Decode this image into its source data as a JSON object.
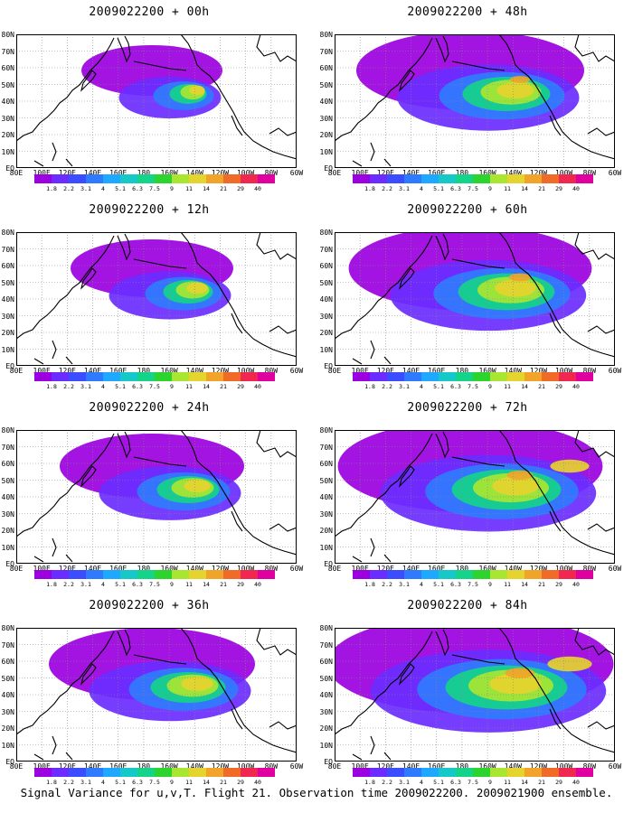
{
  "footer": "Signal Variance for u,v,T. Flight 21. Observation time 2009022200. 2009021900 ensemble.",
  "lat_labels": [
    "80N",
    "70N",
    "60N",
    "50N",
    "40N",
    "30N",
    "20N",
    "10N",
    "EQ"
  ],
  "lon_labels": [
    "80E",
    "100E",
    "120E",
    "140E",
    "160E",
    "180",
    "160W",
    "140W",
    "120W",
    "100W",
    "80W",
    "60W"
  ],
  "colorbar": {
    "labels": [
      "1.8",
      "2.2",
      "3.1",
      "4",
      "5.1",
      "6.3",
      "7.5",
      "9",
      "11",
      "14",
      "21",
      "29",
      "40"
    ],
    "colors": [
      "#9b00e0",
      "#6a2cff",
      "#3c4cff",
      "#2f7bff",
      "#1ea8ff",
      "#16c8c8",
      "#14d48a",
      "#2ed42e",
      "#a8e632",
      "#e6d42e",
      "#f0a42a",
      "#f06a28",
      "#f02850",
      "#e000a0"
    ]
  },
  "panels": [
    {
      "title": "2009022200 + 00h",
      "level": 0.15
    },
    {
      "title": "2009022200 + 48h",
      "level": 0.55
    },
    {
      "title": "2009022200 + 12h",
      "level": 0.25
    },
    {
      "title": "2009022200 + 60h",
      "level": 0.62
    },
    {
      "title": "2009022200 + 24h",
      "level": 0.35
    },
    {
      "title": "2009022200 + 72h",
      "level": 0.72
    },
    {
      "title": "2009022200 + 36h",
      "level": 0.45
    },
    {
      "title": "2009022200 + 84h",
      "level": 0.82
    }
  ]
}
